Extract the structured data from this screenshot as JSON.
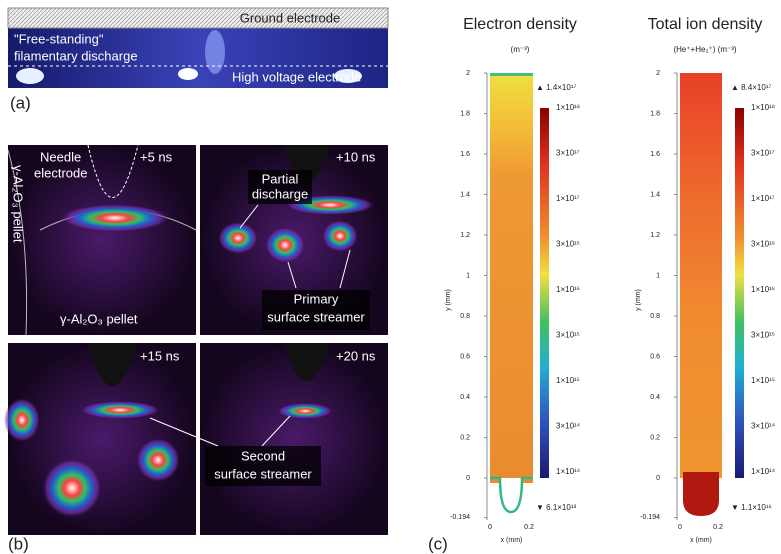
{
  "panel_a": {
    "label": "(a)",
    "ground": "Ground electrode",
    "discharge": [
      "\"Free-standing\"",
      "filamentary discharge"
    ],
    "hv": "High voltage electrode"
  },
  "panel_b": {
    "label": "(b)",
    "frames": [
      {
        "time": "+5 ns",
        "needle": [
          "Needle",
          "electrode"
        ],
        "pellet_side": "γ-Al₂O₃ pellet",
        "pellet": "γ-Al₂O₃ pellet"
      },
      {
        "time": "+10 ns",
        "partial": [
          "Partial",
          "discharge"
        ],
        "primary": [
          "Primary",
          "surface streamer"
        ]
      },
      {
        "time": "+15 ns"
      },
      {
        "time": "+20 ns"
      }
    ],
    "second": [
      "Second",
      "surface streamer"
    ]
  },
  "panel_c": {
    "label": "(c)",
    "plots": [
      {
        "title": "Electron density",
        "unit": "(m⁻³)",
        "yticks": [
          "2",
          "1.8",
          "1.6",
          "1.4",
          "1.2",
          "1",
          "0.8",
          "0.6",
          "0.4",
          "0.2",
          "0",
          "-0.194"
        ],
        "ylabel": "y (mm)",
        "xticks": [
          "0",
          "0.2"
        ],
        "xlabel": "x (mm)",
        "colorbar_max": "▲ 1.4×10¹⁷",
        "colorbar_ticks": [
          "1×10¹⁸",
          "3×10¹⁷",
          "1×10¹⁷",
          "3×10¹⁶",
          "1×10¹⁶",
          "3×10¹⁵",
          "1×10¹⁵",
          "3×10¹⁴",
          "1×10¹⁴"
        ],
        "colorbar_min": "▼ 6.1×10¹³"
      },
      {
        "title": "Total ion density",
        "unit": "(He⁺+He₂⁺)  (m⁻³)",
        "yticks": [
          "2",
          "1.8",
          "1.6",
          "1.4",
          "1.2",
          "1",
          "0.8",
          "0.6",
          "0.4",
          "0.2",
          "0",
          "-0.194"
        ],
        "ylabel": "y (mm)",
        "xticks": [
          "0",
          "0.2"
        ],
        "xlabel": "x (mm)",
        "colorbar_max": "▲ 8.4×10¹⁷",
        "colorbar_ticks": [
          "1×10¹⁸",
          "3×10¹⁷",
          "1×10¹⁷",
          "3×10¹⁶",
          "1×10¹⁶",
          "3×10¹⁵",
          "1×10¹⁵",
          "3×10¹⁴",
          "1×10¹⁴"
        ],
        "colorbar_min": "▼ 1.1×10¹⁶"
      }
    ]
  }
}
